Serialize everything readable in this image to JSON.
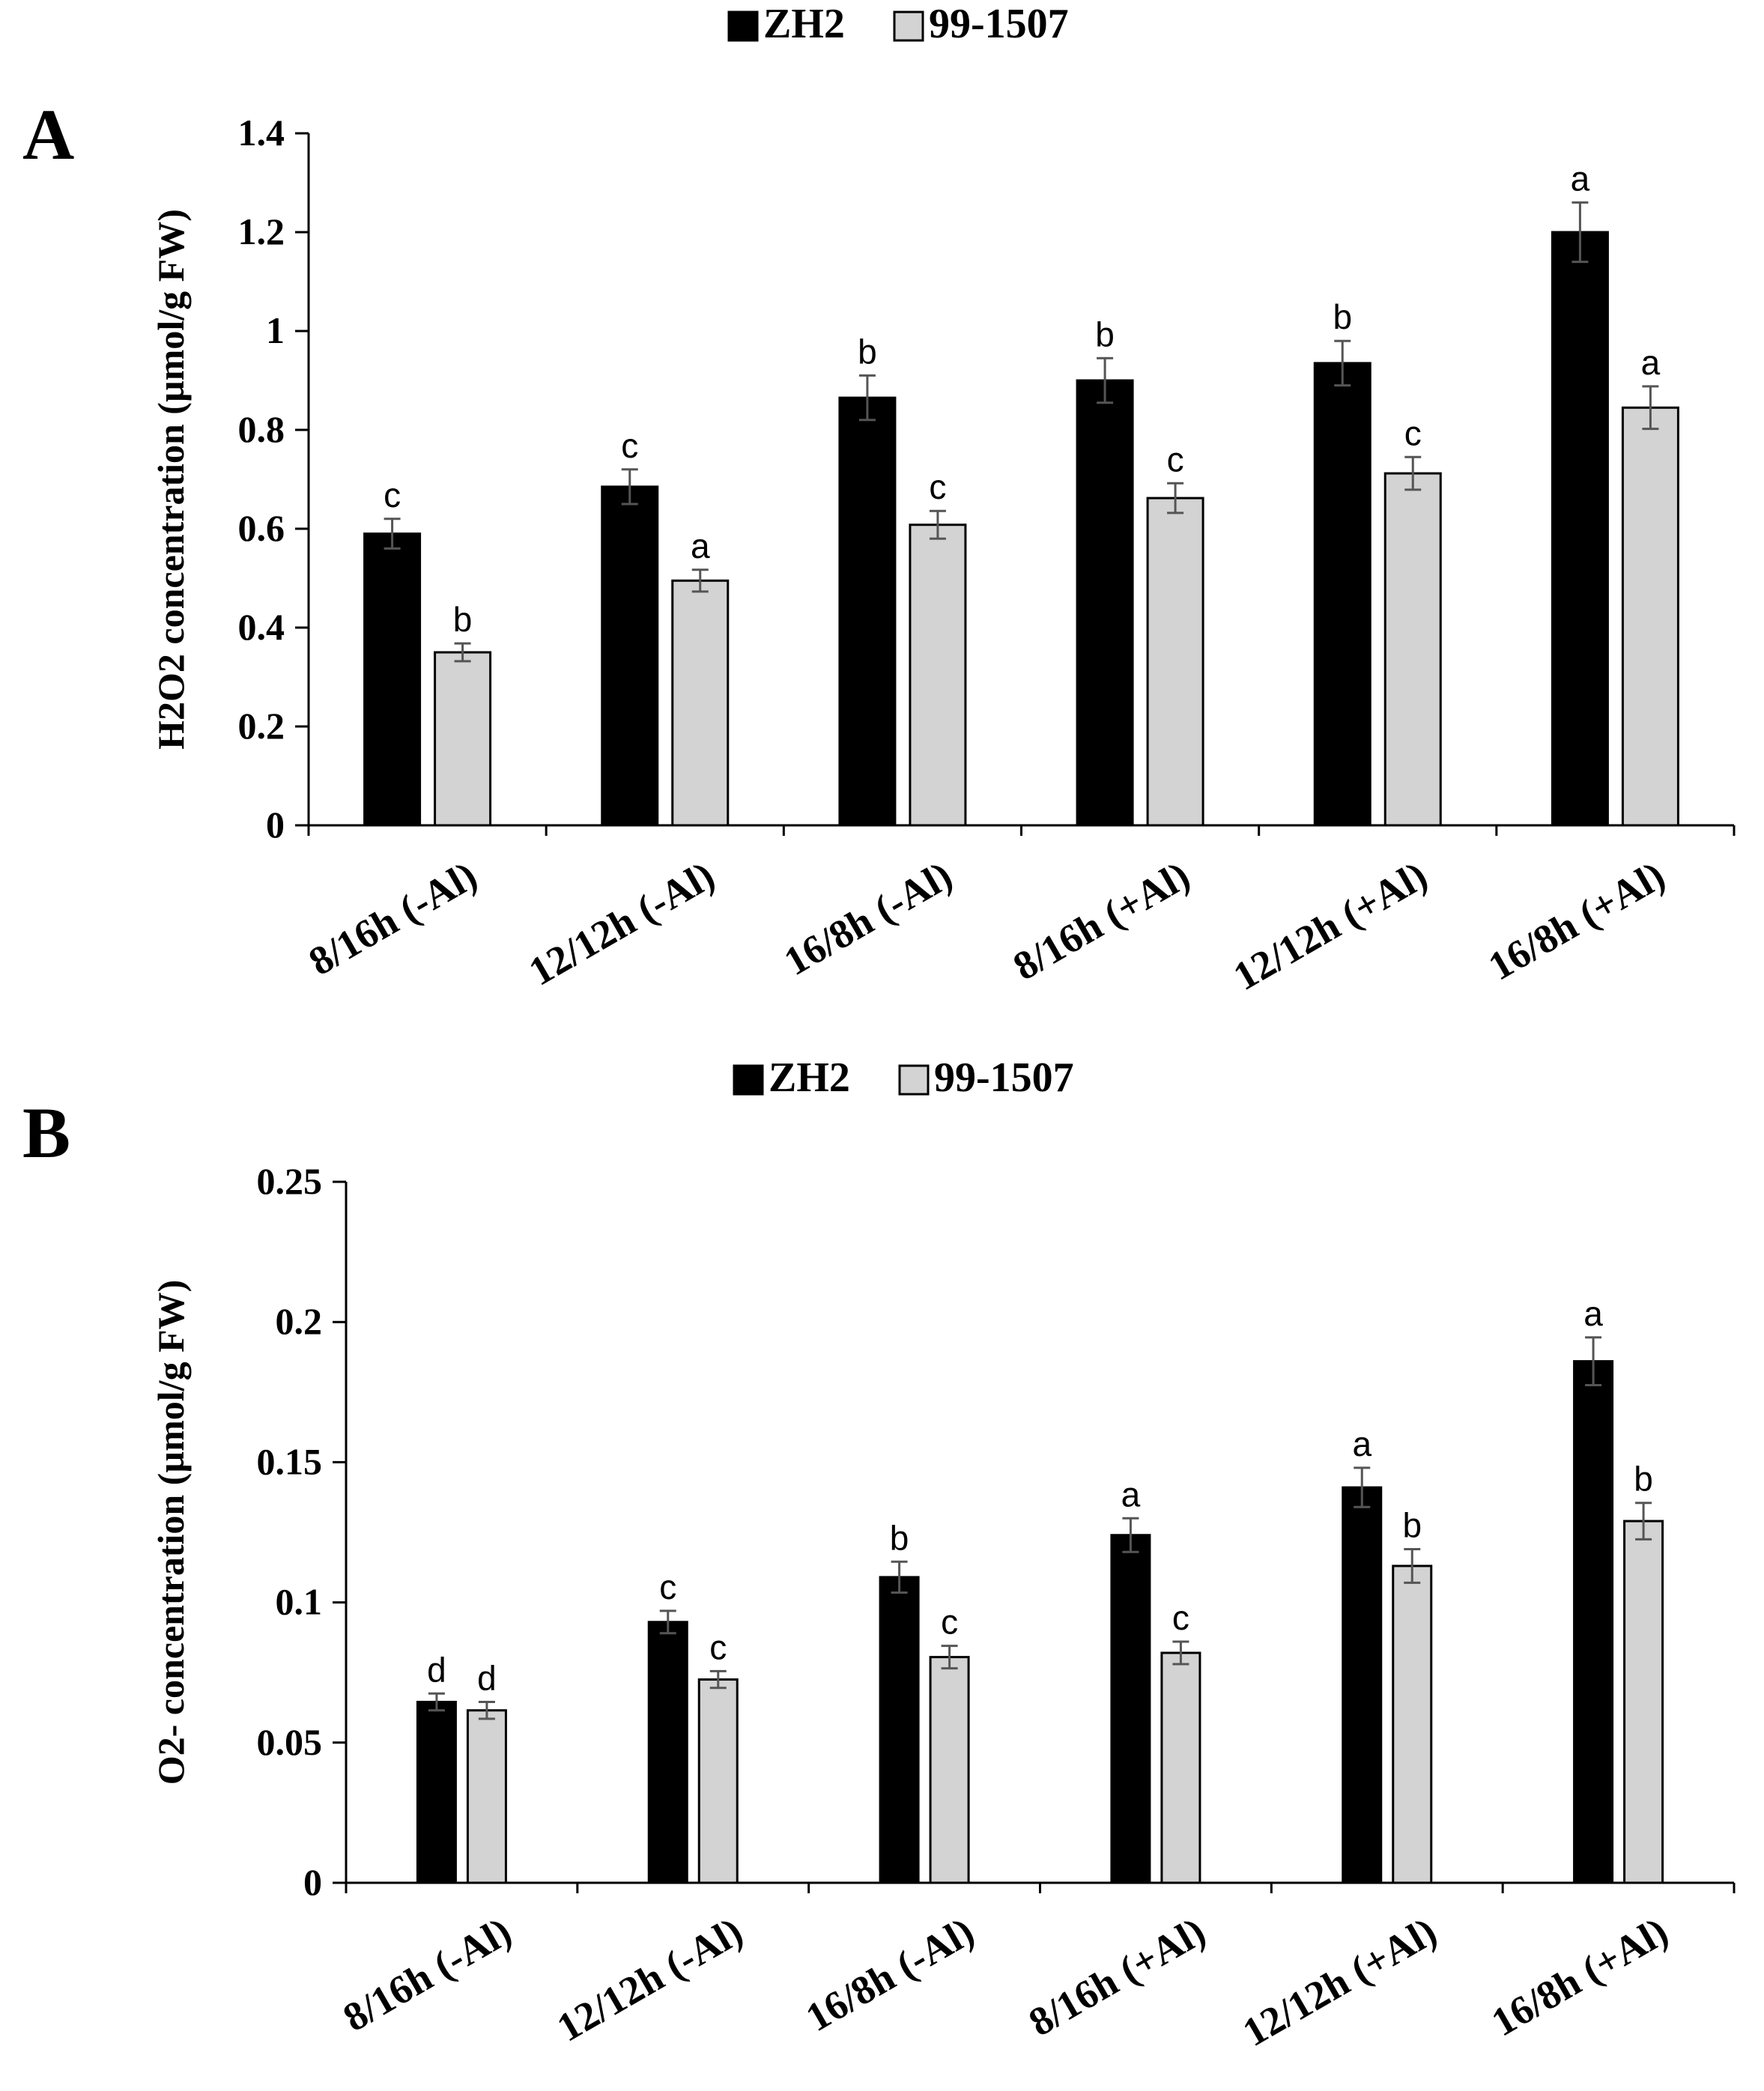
{
  "chart_data": [
    {
      "type": "bar",
      "panel": "A",
      "title": "",
      "xlabel": "",
      "ylabel": "H2O2 concentration (µmol/g FW)",
      "ylim": [
        0,
        1.4
      ],
      "yticks": [
        0,
        0.2,
        0.4,
        0.6,
        0.8,
        1,
        1.2,
        1.4
      ],
      "ytick_labels": [
        "0",
        "0.2",
        "0.4",
        "0.6",
        "0.8",
        "1",
        "1.2",
        "1.4"
      ],
      "categories": [
        "8/16h (-Al)",
        "12/12h (-Al)",
        "16/8h (-Al)",
        "8/16h (+Al)",
        "12/12h (+Al)",
        "16/8h (+Al)"
      ],
      "legend": [
        "ZH2",
        "99-1507"
      ],
      "legend_position": "top-center",
      "series": [
        {
          "name": "ZH2",
          "color": "#000000",
          "values": [
            0.59,
            0.685,
            0.865,
            0.9,
            0.935,
            1.2
          ],
          "errors": [
            0.03,
            0.035,
            0.045,
            0.045,
            0.045,
            0.06
          ],
          "labels": [
            "c",
            "c",
            "b",
            "b",
            "b",
            "a"
          ]
        },
        {
          "name": "99-1507",
          "color": "#d3d3d3",
          "values": [
            0.35,
            0.495,
            0.608,
            0.662,
            0.712,
            0.845
          ],
          "errors": [
            0.018,
            0.022,
            0.028,
            0.03,
            0.033,
            0.043
          ],
          "labels": [
            "b",
            "a",
            "c",
            "c",
            "c",
            "a"
          ]
        }
      ]
    },
    {
      "type": "bar",
      "panel": "B",
      "title": "",
      "xlabel": "",
      "ylabel": "O2- concentration (µmol/g FW)",
      "ylim": [
        0,
        0.25
      ],
      "yticks": [
        0,
        0.05,
        0.1,
        0.15,
        0.2,
        0.25
      ],
      "ytick_labels": [
        "0",
        "0.05",
        "0.1",
        "0.15",
        "0.2",
        "0.25"
      ],
      "categories": [
        "8/16h (-Al)",
        "12/12h (-Al)",
        "16/8h (-Al)",
        "8/16h (+Al)",
        "12/12h (+Al)",
        "16/8h (+Al)"
      ],
      "legend": [
        "ZH2",
        "99-1507"
      ],
      "legend_position": "top-center",
      "series": [
        {
          "name": "ZH2",
          "color": "#000000",
          "values": [
            0.0645,
            0.093,
            0.109,
            0.124,
            0.141,
            0.186
          ],
          "errors": [
            0.003,
            0.004,
            0.0055,
            0.006,
            0.007,
            0.0085
          ],
          "labels": [
            "d",
            "c",
            "b",
            "a",
            "a",
            "a"
          ]
        },
        {
          "name": "99-1507",
          "color": "#d3d3d3",
          "values": [
            0.0615,
            0.0725,
            0.0805,
            0.082,
            0.113,
            0.129
          ],
          "errors": [
            0.003,
            0.003,
            0.004,
            0.004,
            0.006,
            0.0065
          ],
          "labels": [
            "d",
            "c",
            "c",
            "c",
            "b",
            "b"
          ]
        }
      ]
    }
  ]
}
